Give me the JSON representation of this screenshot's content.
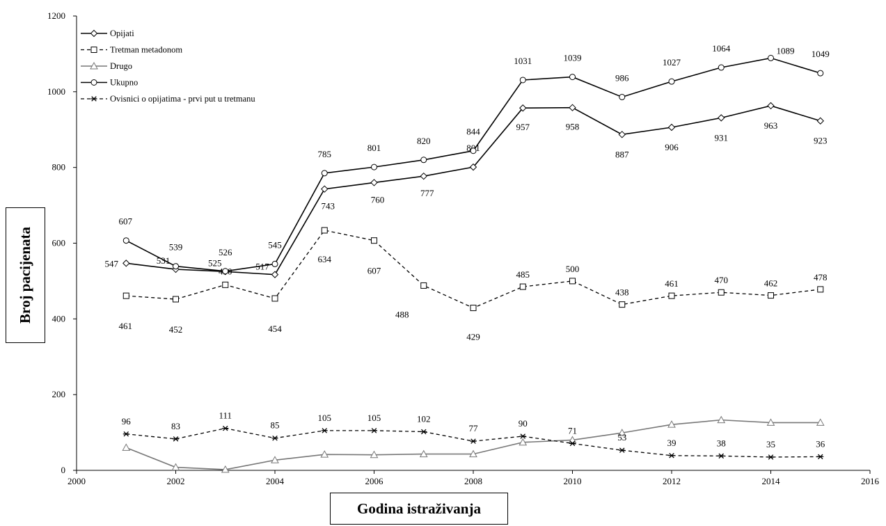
{
  "chart_data": {
    "type": "line",
    "xlabel": "Godina istraživanja",
    "ylabel": "Broj pacijenata",
    "xlim": [
      2000,
      2016
    ],
    "ylim": [
      0,
      1200
    ],
    "xticks": [
      2000,
      2002,
      2004,
      2006,
      2008,
      2010,
      2012,
      2014,
      2016
    ],
    "yticks": [
      0,
      200,
      400,
      600,
      800,
      1000,
      1200
    ],
    "legend_position": "top-left",
    "grid": false,
    "x": [
      2001,
      2002,
      2003,
      2004,
      2005,
      2006,
      2007,
      2008,
      2009,
      2010,
      2011,
      2012,
      2013,
      2014,
      2015
    ],
    "series": [
      {
        "name": "Opijati",
        "marker": "diamond",
        "line": "solid",
        "color": "#000000",
        "values": [
          547,
          531,
          525,
          517,
          743,
          760,
          777,
          801,
          957,
          958,
          887,
          906,
          931,
          963,
          923
        ],
        "labeled": true
      },
      {
        "name": "Tretman metadonom",
        "marker": "square",
        "line": "dashed",
        "color": "#000000",
        "values": [
          461,
          452,
          490,
          454,
          634,
          607,
          488,
          429,
          485,
          500,
          438,
          461,
          470,
          462,
          478
        ],
        "labeled": true
      },
      {
        "name": "Drugo",
        "marker": "triangle",
        "line": "solid",
        "color": "#777777",
        "values": [
          60,
          8,
          2,
          27,
          42,
          41,
          43,
          43,
          74,
          80,
          99,
          121,
          133,
          126,
          126
        ],
        "labeled": false
      },
      {
        "name": "Ukupno",
        "marker": "circle",
        "line": "solid",
        "color": "#000000",
        "values": [
          607,
          539,
          526,
          545,
          785,
          801,
          820,
          844,
          1031,
          1039,
          986,
          1027,
          1064,
          1089,
          1049
        ],
        "labeled": true
      },
      {
        "name": "Ovisnici o opijatima - prvi put u tretmanu",
        "marker": "star",
        "line": "dashed",
        "color": "#000000",
        "values": [
          96,
          83,
          111,
          85,
          105,
          105,
          102,
          77,
          90,
          71,
          53,
          39,
          38,
          35,
          36
        ],
        "labeled": true
      }
    ]
  }
}
